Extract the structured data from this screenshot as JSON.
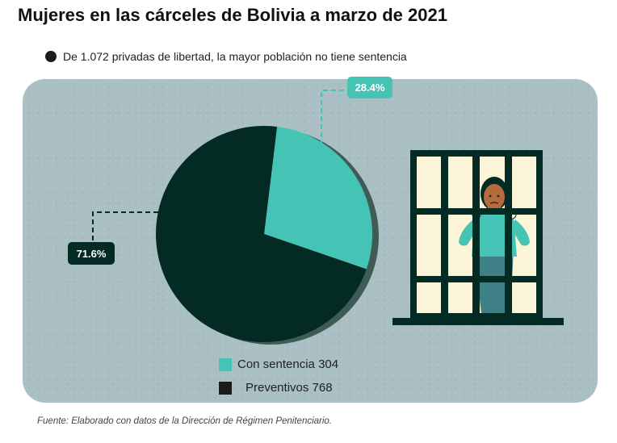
{
  "title": "Mujeres en las cárceles de Bolivia a marzo de 2021",
  "subtitle": "De 1.072 privadas de libertad, la mayor población no tiene sentencia",
  "footer": "Fuente: Elaborado con datos de la Dirección de Régimen Penitenciario.",
  "colors": {
    "con_sentencia": "#45c4b6",
    "preventivos": "#032b23",
    "panel": "#a9bfc3",
    "shadow": "#3f5b56"
  },
  "chart_data": {
    "type": "pie",
    "total": 1072,
    "slices": [
      {
        "label": "Con sentencia",
        "value": 304,
        "percent_label": "28.4%",
        "color": "#45c4b6",
        "legend": "Con sentencia 304"
      },
      {
        "label": "Preventivos",
        "value": 768,
        "percent_label": "71.6%",
        "color": "#032b23",
        "legend": "Preventivos 768"
      }
    ],
    "legend_placement": "bottom-center"
  }
}
